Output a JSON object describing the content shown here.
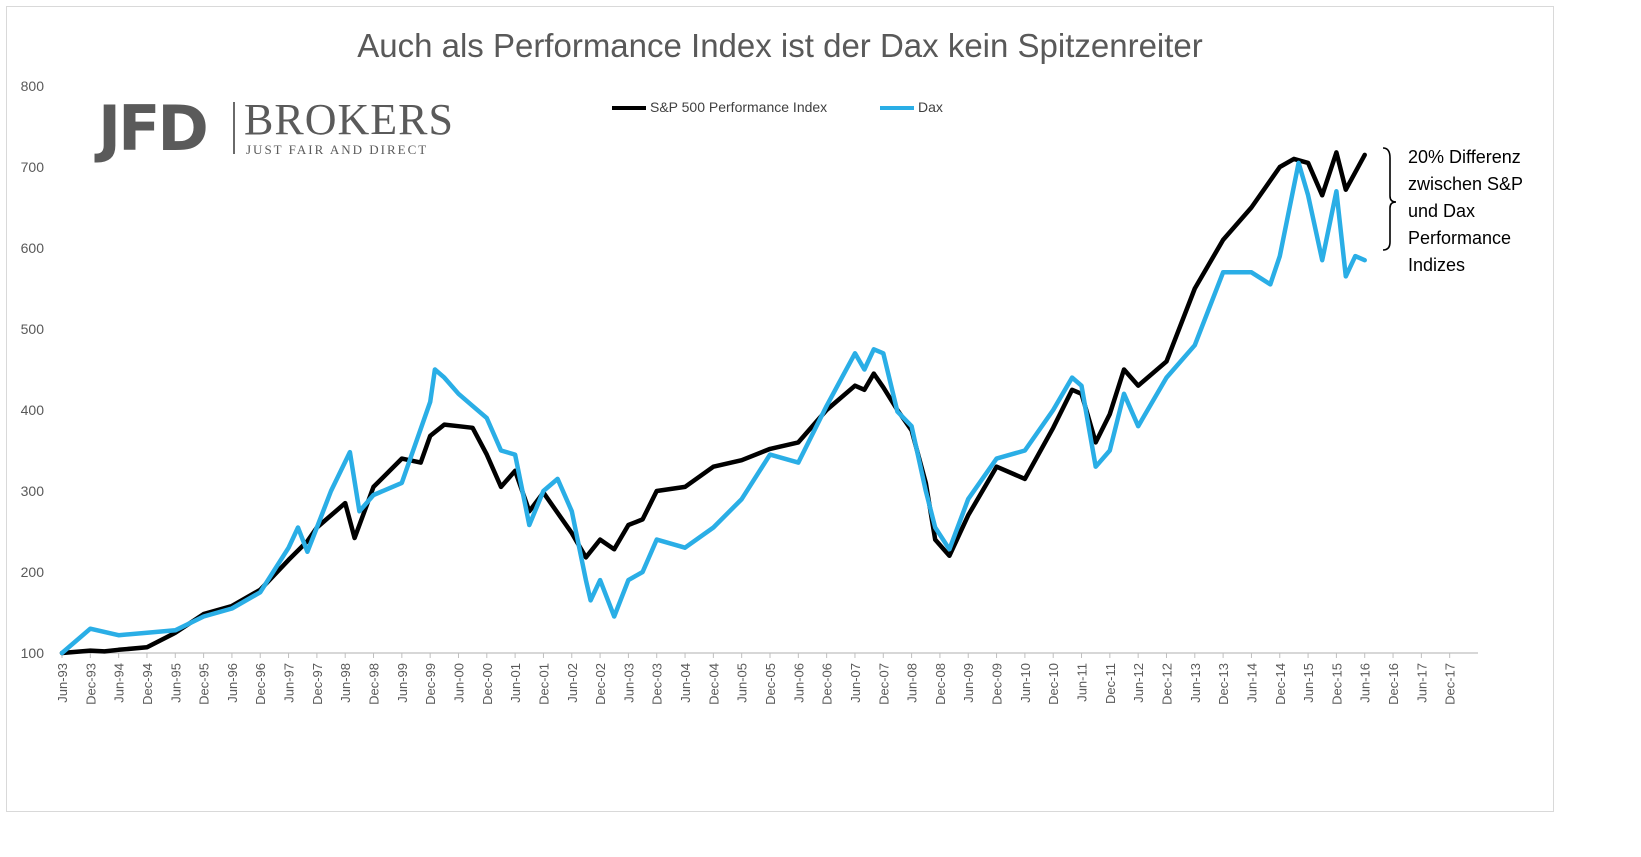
{
  "title": "Auch als Performance Index ist der Dax kein Spitzenreiter",
  "logo": {
    "jfd": "JFD",
    "brokers": "BROKERS",
    "tagline": "JUST FAIR AND DIRECT"
  },
  "annotation": {
    "lines": [
      "20% Differenz",
      "zwischen S&P",
      "und Dax",
      "Performance",
      "Indizes"
    ]
  },
  "colors": {
    "sp500": "#000000",
    "dax": "#2aaee6",
    "axis": "#bfbfbf",
    "text": "#595959"
  },
  "chart_data": {
    "type": "line",
    "title": "Auch als Performance Index ist der Dax kein Spitzenreiter",
    "xlabel": "",
    "ylabel": "",
    "ylim": [
      100,
      800
    ],
    "yticks": [
      100,
      200,
      300,
      400,
      500,
      600,
      700,
      800
    ],
    "grid": false,
    "legend_position": "top-center",
    "x_tick_labels": [
      "Jun-93",
      "Dec-93",
      "Jun-94",
      "Dec-94",
      "Jun-95",
      "Dec-95",
      "Jun-96",
      "Dec-96",
      "Jun-97",
      "Dec-97",
      "Jun-98",
      "Dec-98",
      "Jun-99",
      "Dec-99",
      "Jun-00",
      "Dec-00",
      "Jun-01",
      "Dec-01",
      "Jun-02",
      "Dec-02",
      "Jun-03",
      "Dec-03",
      "Jun-04",
      "Dec-04",
      "Jun-05",
      "Dec-05",
      "Jun-06",
      "Dec-06",
      "Jun-07",
      "Dec-07",
      "Jun-08",
      "Dec-08",
      "Jun-09",
      "Dec-09",
      "Jun-10",
      "Dec-10",
      "Jun-11",
      "Dec-11",
      "Jun-12",
      "Dec-12",
      "Jun-13",
      "Dec-13",
      "Jun-14",
      "Dec-14",
      "Jun-15",
      "Dec-15",
      "Jun-16",
      "Dec-16",
      "Jun-17",
      "Dec-17"
    ],
    "series": [
      {
        "name": "S&P 500 Performance Index",
        "color": "#000000",
        "points": [
          [
            "Jun-93",
            100
          ],
          [
            "Dec-93",
            103
          ],
          [
            "Mar-94",
            102
          ],
          [
            "Jun-94",
            104
          ],
          [
            "Dec-94",
            107
          ],
          [
            "Jun-95",
            125
          ],
          [
            "Dec-95",
            148
          ],
          [
            "Jun-96",
            158
          ],
          [
            "Dec-96",
            178
          ],
          [
            "Jun-97",
            215
          ],
          [
            "Oct-97",
            238
          ],
          [
            "Dec-97",
            255
          ],
          [
            "Jun-98",
            285
          ],
          [
            "Aug-98",
            242
          ],
          [
            "Dec-98",
            305
          ],
          [
            "Jun-99",
            340
          ],
          [
            "Oct-99",
            335
          ],
          [
            "Dec-99",
            368
          ],
          [
            "Mar-00",
            382
          ],
          [
            "Jun-00",
            380
          ],
          [
            "Sep-00",
            378
          ],
          [
            "Dec-00",
            345
          ],
          [
            "Mar-01",
            305
          ],
          [
            "Jun-01",
            325
          ],
          [
            "Sep-01",
            275
          ],
          [
            "Dec-01",
            298
          ],
          [
            "Jun-02",
            248
          ],
          [
            "Sep-02",
            218
          ],
          [
            "Dec-02",
            240
          ],
          [
            "Mar-03",
            228
          ],
          [
            "Jun-03",
            258
          ],
          [
            "Sep-03",
            265
          ],
          [
            "Dec-03",
            300
          ],
          [
            "Jun-04",
            305
          ],
          [
            "Dec-04",
            330
          ],
          [
            "Jun-05",
            338
          ],
          [
            "Dec-05",
            352
          ],
          [
            "Jun-06",
            360
          ],
          [
            "Dec-06",
            400
          ],
          [
            "Jun-07",
            430
          ],
          [
            "Aug-07",
            425
          ],
          [
            "Oct-07",
            445
          ],
          [
            "Dec-07",
            428
          ],
          [
            "Mar-08",
            400
          ],
          [
            "Jun-08",
            375
          ],
          [
            "Sep-08",
            310
          ],
          [
            "Nov-08",
            240
          ],
          [
            "Feb-09",
            220
          ],
          [
            "Jun-09",
            270
          ],
          [
            "Dec-09",
            330
          ],
          [
            "Jun-10",
            315
          ],
          [
            "Dec-10",
            378
          ],
          [
            "Apr-11",
            425
          ],
          [
            "Jun-11",
            420
          ],
          [
            "Sep-11",
            360
          ],
          [
            "Dec-11",
            395
          ],
          [
            "Mar-12",
            450
          ],
          [
            "Jun-12",
            430
          ],
          [
            "Dec-12",
            460
          ],
          [
            "Jun-13",
            550
          ],
          [
            "Dec-13",
            610
          ],
          [
            "Jun-14",
            650
          ],
          [
            "Dec-14",
            700
          ],
          [
            "Mar-15",
            710
          ],
          [
            "Jun-15",
            705
          ],
          [
            "Sep-15",
            665
          ],
          [
            "Dec-15",
            718
          ],
          [
            "Feb-16",
            672
          ],
          [
            "Jun-16",
            715
          ]
        ]
      },
      {
        "name": "Dax",
        "color": "#2aaee6",
        "points": [
          [
            "Jun-93",
            100
          ],
          [
            "Dec-93",
            130
          ],
          [
            "Jun-94",
            122
          ],
          [
            "Dec-94",
            125
          ],
          [
            "Jun-95",
            128
          ],
          [
            "Dec-95",
            145
          ],
          [
            "Jun-96",
            155
          ],
          [
            "Dec-96",
            175
          ],
          [
            "Jun-97",
            230
          ],
          [
            "Aug-97",
            255
          ],
          [
            "Oct-97",
            225
          ],
          [
            "Dec-97",
            255
          ],
          [
            "Mar-98",
            300
          ],
          [
            "Jul-98",
            348
          ],
          [
            "Sep-98",
            275
          ],
          [
            "Dec-98",
            295
          ],
          [
            "Jun-99",
            310
          ],
          [
            "Dec-99",
            410
          ],
          [
            "Jan-00",
            450
          ],
          [
            "Mar-00",
            440
          ],
          [
            "Jun-00",
            420
          ],
          [
            "Sep-00",
            405
          ],
          [
            "Dec-00",
            390
          ],
          [
            "Mar-01",
            350
          ],
          [
            "Jun-01",
            345
          ],
          [
            "Sep-01",
            258
          ],
          [
            "Dec-01",
            300
          ],
          [
            "Mar-02",
            315
          ],
          [
            "Jun-02",
            275
          ],
          [
            "Sep-02",
            190
          ],
          [
            "Oct-02",
            165
          ],
          [
            "Dec-02",
            190
          ],
          [
            "Mar-03",
            145
          ],
          [
            "Jun-03",
            190
          ],
          [
            "Sep-03",
            200
          ],
          [
            "Dec-03",
            240
          ],
          [
            "Jun-04",
            230
          ],
          [
            "Dec-04",
            255
          ],
          [
            "Jun-05",
            290
          ],
          [
            "Dec-05",
            345
          ],
          [
            "Jun-06",
            335
          ],
          [
            "Dec-06",
            405
          ],
          [
            "Jun-07",
            470
          ],
          [
            "Aug-07",
            450
          ],
          [
            "Oct-07",
            475
          ],
          [
            "Dec-07",
            470
          ],
          [
            "Mar-08",
            398
          ],
          [
            "Jun-08",
            380
          ],
          [
            "Sep-08",
            300
          ],
          [
            "Nov-08",
            255
          ],
          [
            "Feb-09",
            228
          ],
          [
            "Jun-09",
            290
          ],
          [
            "Dec-09",
            340
          ],
          [
            "Jun-10",
            350
          ],
          [
            "Dec-10",
            400
          ],
          [
            "Apr-11",
            440
          ],
          [
            "Jun-11",
            430
          ],
          [
            "Sep-11",
            330
          ],
          [
            "Dec-11",
            350
          ],
          [
            "Mar-12",
            420
          ],
          [
            "Jun-12",
            380
          ],
          [
            "Dec-12",
            440
          ],
          [
            "Jun-13",
            480
          ],
          [
            "Dec-13",
            570
          ],
          [
            "Jun-14",
            570
          ],
          [
            "Oct-14",
            555
          ],
          [
            "Dec-14",
            590
          ],
          [
            "Apr-15",
            705
          ],
          [
            "Jun-15",
            665
          ],
          [
            "Sep-15",
            585
          ],
          [
            "Dec-15",
            670
          ],
          [
            "Feb-16",
            565
          ],
          [
            "Apr-16",
            590
          ],
          [
            "Jun-16",
            585
          ]
        ]
      }
    ]
  }
}
